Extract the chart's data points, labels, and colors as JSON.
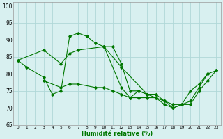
{
  "title": "",
  "xlabel": "Humidité relative (%)",
  "ylabel": "",
  "bg_color": "#d8f0f0",
  "grid_color": "#b0d8d8",
  "line_color": "#007700",
  "xlim": [
    -0.5,
    23.5
  ],
  "ylim": [
    65,
    101
  ],
  "yticks": [
    65,
    70,
    75,
    80,
    85,
    90,
    95,
    100
  ],
  "xticks": [
    0,
    1,
    2,
    3,
    4,
    5,
    6,
    7,
    8,
    9,
    10,
    11,
    12,
    13,
    14,
    15,
    16,
    17,
    18,
    19,
    20,
    21,
    22,
    23
  ],
  "series": [
    [
      84,
      82,
      null,
      79,
      74,
      75,
      91,
      92,
      91,
      89,
      88,
      88,
      83,
      75,
      75,
      74,
      74,
      null,
      null,
      null,
      null,
      null,
      null,
      null
    ],
    [
      null,
      null,
      null,
      null,
      null,
      null,
      null,
      null,
      null,
      null,
      88,
      null,
      82,
      null,
      null,
      74,
      74,
      72,
      71,
      71,
      75,
      77,
      80,
      81
    ],
    [
      84,
      null,
      null,
      87,
      null,
      83,
      86,
      87,
      null,
      null,
      88,
      null,
      76,
      73,
      75,
      74,
      73,
      72,
      70,
      71,
      72,
      76,
      80,
      null
    ],
    [
      null,
      null,
      null,
      78,
      null,
      76,
      77,
      77,
      null,
      76,
      76,
      75,
      74,
      73,
      73,
      73,
      73,
      71,
      70,
      71,
      71,
      75,
      78,
      81
    ]
  ]
}
